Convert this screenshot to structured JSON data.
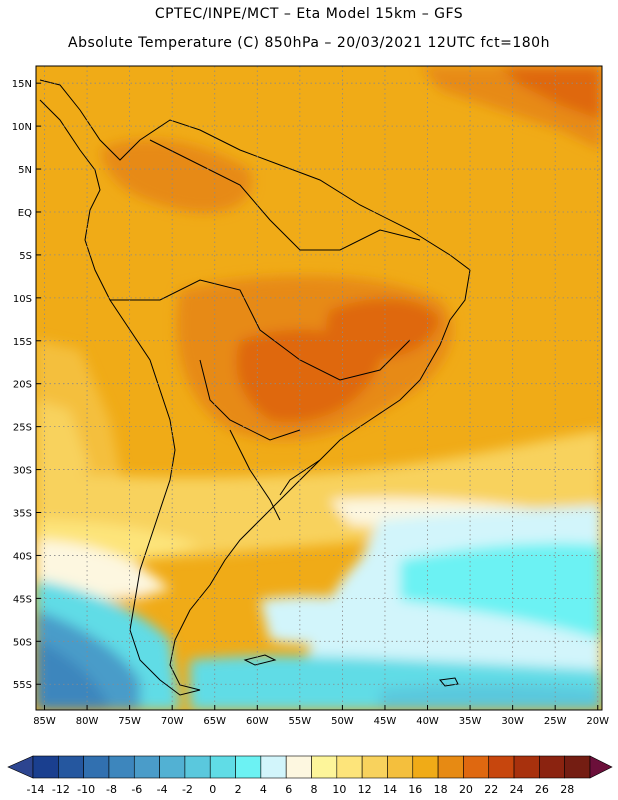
{
  "header": {
    "line1": "CPTEC/INPE/MCT –  Eta Model 15km – GFS",
    "line2": "Absolute Temperature (C) 850hPa – 20/03/2021 12UTC fct=180h"
  },
  "map": {
    "lat_labels": [
      "15N",
      "10N",
      "5N",
      "EQ",
      "5S",
      "10S",
      "15S",
      "20S",
      "25S",
      "30S",
      "35S",
      "40S",
      "45S",
      "50S",
      "55S"
    ],
    "lat_values": [
      15,
      10,
      5,
      0,
      -5,
      -10,
      -15,
      -20,
      -25,
      -30,
      -35,
      -40,
      -45,
      -50,
      -55
    ],
    "lon_labels": [
      "85W",
      "80W",
      "75W",
      "70W",
      "65W",
      "60W",
      "55W",
      "50W",
      "45W",
      "40W",
      "35W",
      "30W",
      "25W",
      "20W"
    ],
    "lon_values": [
      -85,
      -80,
      -75,
      -70,
      -65,
      -60,
      -55,
      -50,
      -45,
      -40,
      -35,
      -30,
      -25,
      -20
    ],
    "lat_range": [
      -58,
      17
    ],
    "lon_range": [
      -86,
      -19.5
    ],
    "grid": true
  },
  "colorbar": {
    "labels": [
      "-14",
      "-12",
      "-10",
      "-8",
      "-6",
      "-4",
      "-2",
      "0",
      "2",
      "4",
      "6",
      "8",
      "10",
      "12",
      "14",
      "16",
      "18",
      "20",
      "22",
      "24",
      "26",
      "28"
    ],
    "colors": [
      "#1a3f8f",
      "#25579f",
      "#3170b0",
      "#3d86bd",
      "#4a9cc9",
      "#52b1d3",
      "#5ac8dd",
      "#60dce6",
      "#6cf2f3",
      "#d2f5fb",
      "#fdf7e0",
      "#fdf59a",
      "#fde47a",
      "#f8d25d",
      "#f4bf3d",
      "#f0ab17",
      "#e78a13",
      "#df6810",
      "#c7460d",
      "#a8310d",
      "#8b2310",
      "#741d12"
    ],
    "under_color": "#2d4590",
    "over_color": "#6b0f3a"
  }
}
